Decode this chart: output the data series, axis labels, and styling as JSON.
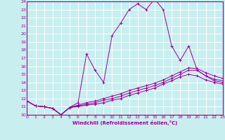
{
  "xlabel": "Windchill (Refroidissement éolien,°C)",
  "bg_color": "#c8eef0",
  "grid_color": "#ffffff",
  "line_color": "#990099",
  "xlim": [
    0,
    23
  ],
  "ylim": [
    10,
    24
  ],
  "xticks": [
    0,
    1,
    2,
    3,
    4,
    5,
    6,
    7,
    8,
    9,
    10,
    11,
    12,
    13,
    14,
    15,
    16,
    17,
    18,
    19,
    20,
    21,
    22,
    23
  ],
  "yticks": [
    10,
    11,
    12,
    13,
    14,
    15,
    16,
    17,
    18,
    19,
    20,
    21,
    22,
    23,
    24
  ],
  "lines": [
    {
      "x": [
        0,
        1,
        2,
        3,
        4,
        5,
        6,
        7,
        8,
        9,
        10,
        11,
        12,
        13,
        14,
        15,
        16,
        17,
        18,
        19,
        20,
        21,
        22,
        23
      ],
      "y": [
        11.7,
        11.1,
        11.0,
        10.8,
        10.0,
        10.9,
        11.5,
        17.5,
        15.5,
        14.0,
        19.8,
        21.3,
        23.0,
        23.7,
        23.0,
        24.3,
        23.0,
        18.5,
        16.7,
        18.5,
        15.5,
        14.8,
        14.2,
        14.0
      ]
    },
    {
      "x": [
        0,
        1,
        2,
        3,
        4,
        5,
        6,
        7,
        8,
        9,
        10,
        11,
        12,
        13,
        14,
        15,
        16,
        17,
        18,
        19,
        20,
        21,
        22,
        23
      ],
      "y": [
        11.7,
        11.1,
        11.0,
        10.8,
        10.0,
        10.9,
        11.2,
        11.5,
        11.7,
        12.0,
        12.3,
        12.6,
        13.0,
        13.3,
        13.6,
        13.9,
        14.3,
        14.8,
        15.3,
        15.8,
        15.7,
        15.2,
        14.8,
        14.5
      ]
    },
    {
      "x": [
        0,
        1,
        2,
        3,
        4,
        5,
        6,
        7,
        8,
        9,
        10,
        11,
        12,
        13,
        14,
        15,
        16,
        17,
        18,
        19,
        20,
        21,
        22,
        23
      ],
      "y": [
        11.7,
        11.1,
        11.0,
        10.8,
        10.0,
        10.9,
        11.1,
        11.3,
        11.5,
        11.8,
        12.0,
        12.3,
        12.7,
        13.0,
        13.3,
        13.6,
        14.0,
        14.5,
        15.0,
        15.5,
        15.5,
        14.8,
        14.4,
        14.2
      ]
    },
    {
      "x": [
        0,
        1,
        2,
        3,
        4,
        5,
        6,
        7,
        8,
        9,
        10,
        11,
        12,
        13,
        14,
        15,
        16,
        17,
        18,
        19,
        20,
        21,
        22,
        23
      ],
      "y": [
        11.7,
        11.1,
        11.0,
        10.8,
        10.0,
        10.9,
        11.0,
        11.2,
        11.3,
        11.5,
        11.8,
        12.0,
        12.4,
        12.7,
        13.0,
        13.3,
        13.8,
        14.2,
        14.7,
        15.0,
        14.8,
        14.3,
        14.0,
        13.8
      ]
    }
  ]
}
